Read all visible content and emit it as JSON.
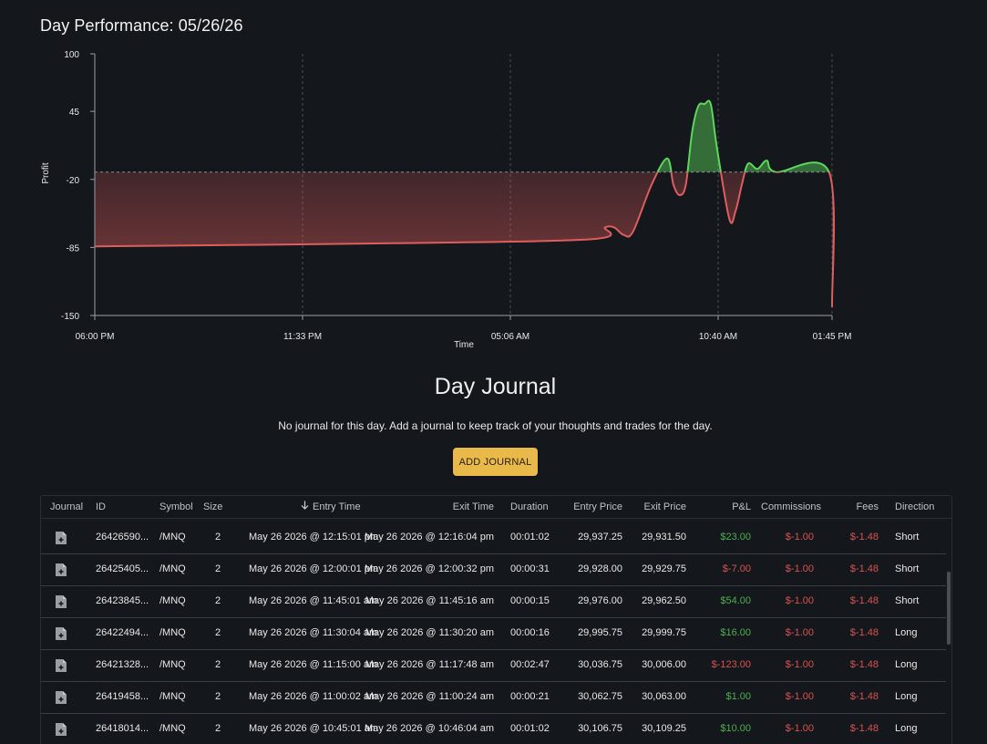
{
  "page": {
    "title": "Day Performance: 05/26/26"
  },
  "chart_data": {
    "type": "area",
    "title": "Day Performance: 05/26/26",
    "xlabel": "Time",
    "ylabel": "Profit",
    "y_ticks": [
      "100",
      "45",
      "-20",
      "-85",
      "-150"
    ],
    "x_ticks": [
      "06:00 PM",
      "11:33 PM",
      "05:06 AM",
      "10:40 AM",
      "01:45 PM"
    ],
    "ylim": [
      -150,
      100
    ],
    "baseline": -13,
    "grid": "vertical dashed",
    "colors": {
      "positive": "#5cd65c",
      "negative": "#e05d5d"
    },
    "series": [
      {
        "x": [
          "05/25 18:00",
          "05/26 02:00",
          "05/26 07:20",
          "05/26 07:40",
          "05/26 07:55",
          "05/26 08:10",
          "05/26 08:25",
          "05/26 08:55",
          "05/26 09:20",
          "05/26 09:30",
          "05/26 09:40",
          "05/26 09:50",
          "05/26 10:00",
          "05/26 10:10",
          "05/26 10:20",
          "05/26 10:30",
          "05/26 10:40",
          "05/26 11:00",
          "05/26 11:10",
          "05/26 11:20",
          "05/26 11:30",
          "05/26 11:45",
          "05/26 12:00",
          "05/26 12:15",
          "05/26 13:40",
          "05/26 13:45"
        ],
        "y": [
          -84,
          -81,
          -77,
          -66,
          -66,
          -73,
          -70,
          -25,
          0,
          -25,
          -35,
          -25,
          25,
          50,
          52,
          52,
          10,
          -58,
          -50,
          -25,
          -5,
          -10,
          -2,
          -13,
          -13,
          -142
        ]
      }
    ]
  },
  "journal": {
    "heading": "Day Journal",
    "empty_message": "No journal for this day. Add a journal to keep track of your thoughts and trades for the day.",
    "add_button": "ADD JOURNAL"
  },
  "table": {
    "columns": [
      "Journal",
      "ID",
      "Symbol",
      "Size",
      "Entry Time",
      "Exit Time",
      "Duration",
      "Entry Price",
      "Exit Price",
      "P&L",
      "Commissions",
      "Fees",
      "Direction"
    ],
    "sort_icon": "arrow-down-icon",
    "rows": [
      {
        "id": "26426590...",
        "symbol": "/MNQ",
        "size": "2",
        "entry_time": "May 26 2026 @ 12:15:01 pm",
        "exit_time": "May 26 2026 @ 12:16:04 pm",
        "duration": "00:01:02",
        "entry_price": "29,937.25",
        "exit_price": "29,931.50",
        "pnl": "$23.00",
        "pnl_sign": "pos",
        "commissions": "$-1.00",
        "fees": "$-1.48",
        "direction": "Short"
      },
      {
        "id": "26425405...",
        "symbol": "/MNQ",
        "size": "2",
        "entry_time": "May 26 2026 @ 12:00:01 pm",
        "exit_time": "May 26 2026 @ 12:00:32 pm",
        "duration": "00:00:31",
        "entry_price": "29,928.00",
        "exit_price": "29,929.75",
        "pnl": "$-7.00",
        "pnl_sign": "neg",
        "commissions": "$-1.00",
        "fees": "$-1.48",
        "direction": "Short"
      },
      {
        "id": "26423845...",
        "symbol": "/MNQ",
        "size": "2",
        "entry_time": "May 26 2026 @ 11:45:01 am",
        "exit_time": "May 26 2026 @ 11:45:16 am",
        "duration": "00:00:15",
        "entry_price": "29,976.00",
        "exit_price": "29,962.50",
        "pnl": "$54.00",
        "pnl_sign": "pos",
        "commissions": "$-1.00",
        "fees": "$-1.48",
        "direction": "Short"
      },
      {
        "id": "26422494...",
        "symbol": "/MNQ",
        "size": "2",
        "entry_time": "May 26 2026 @ 11:30:04 am",
        "exit_time": "May 26 2026 @ 11:30:20 am",
        "duration": "00:00:16",
        "entry_price": "29,995.75",
        "exit_price": "29,999.75",
        "pnl": "$16.00",
        "pnl_sign": "pos",
        "commissions": "$-1.00",
        "fees": "$-1.48",
        "direction": "Long"
      },
      {
        "id": "26421328...",
        "symbol": "/MNQ",
        "size": "2",
        "entry_time": "May 26 2026 @ 11:15:00 am",
        "exit_time": "May 26 2026 @ 11:17:48 am",
        "duration": "00:02:47",
        "entry_price": "30,036.75",
        "exit_price": "30,006.00",
        "pnl": "$-123.00",
        "pnl_sign": "neg",
        "commissions": "$-1.00",
        "fees": "$-1.48",
        "direction": "Long"
      },
      {
        "id": "26419458...",
        "symbol": "/MNQ",
        "size": "2",
        "entry_time": "May 26 2026 @ 11:00:02 am",
        "exit_time": "May 26 2026 @ 11:00:24 am",
        "duration": "00:00:21",
        "entry_price": "30,062.75",
        "exit_price": "30,063.00",
        "pnl": "$1.00",
        "pnl_sign": "pos",
        "commissions": "$-1.00",
        "fees": "$-1.48",
        "direction": "Long"
      },
      {
        "id": "26418014...",
        "symbol": "/MNQ",
        "size": "2",
        "entry_time": "May 26 2026 @ 10:45:01 am",
        "exit_time": "May 26 2026 @ 10:46:04 am",
        "duration": "00:01:02",
        "entry_price": "30,106.75",
        "exit_price": "30,109.25",
        "pnl": "$10.00",
        "pnl_sign": "pos",
        "commissions": "$-1.00",
        "fees": "$-1.48",
        "direction": "Long"
      }
    ]
  }
}
